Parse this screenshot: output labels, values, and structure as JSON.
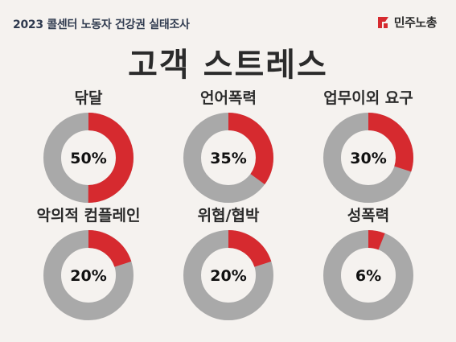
{
  "header": {
    "subtitle": "2023 콜센터 노동자 건강권 실태조사",
    "logo_text": "민주노총"
  },
  "colors": {
    "accent": "#d62a2f",
    "remainder": "#a9a9a9",
    "background": "#f5f2ef"
  },
  "chart_data": {
    "type": "pie",
    "title": "고객 스트레스",
    "donut": true,
    "series": [
      {
        "name": "닦달",
        "value": 50,
        "label": "50%"
      },
      {
        "name": "언어폭력",
        "value": 35,
        "label": "35%"
      },
      {
        "name": "업무이외 요구",
        "value": 30,
        "label": "30%"
      },
      {
        "name": "악의적 컴플레인",
        "value": 20,
        "label": "20%"
      },
      {
        "name": "위협/협박",
        "value": 20,
        "label": "20%"
      },
      {
        "name": "성폭력",
        "value": 6,
        "label": "6%"
      }
    ]
  }
}
